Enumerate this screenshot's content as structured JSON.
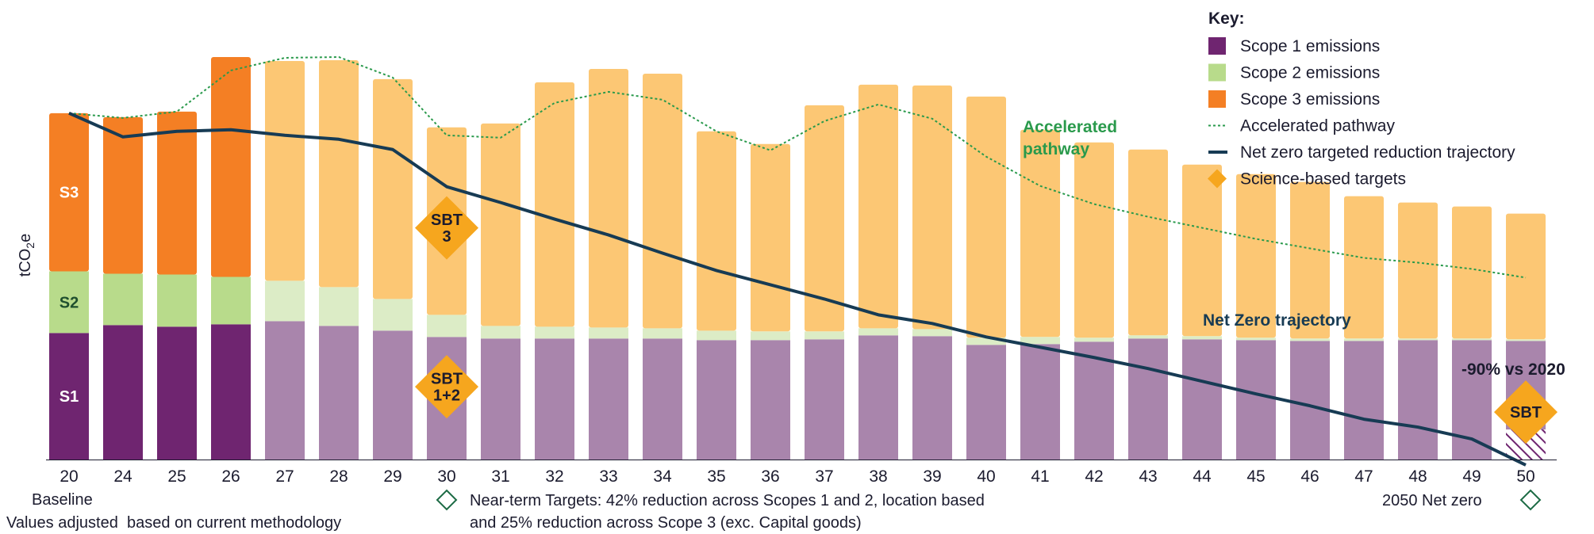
{
  "chart_data": {
    "type": "bar",
    "stacked": true,
    "ylabel": "tCO2e",
    "categories": [
      "20",
      "24",
      "25",
      "26",
      "27",
      "28",
      "29",
      "30",
      "31",
      "32",
      "33",
      "34",
      "35",
      "36",
      "37",
      "38",
      "39",
      "40",
      "41",
      "42",
      "43",
      "44",
      "45",
      "46",
      "47",
      "48",
      "49",
      "50"
    ],
    "baseline_label": "Baseline",
    "series": [
      {
        "name": "Scope 1 emissions",
        "short": "S1",
        "color": "#6f2570",
        "faded_color": "#a985ac",
        "values": [
          160,
          170,
          168,
          171,
          175,
          169,
          163,
          155,
          153,
          153,
          153,
          153,
          151,
          151,
          152,
          157,
          156,
          145,
          146,
          149,
          153,
          152,
          151,
          150,
          150,
          151,
          151,
          150
        ]
      },
      {
        "name": "Scope 2 emissions",
        "short": "S2",
        "color": "#b8db8b",
        "faded_color": "#dcecc6",
        "values": [
          78,
          65,
          66,
          60,
          51,
          49,
          40,
          28,
          16,
          15,
          14,
          13,
          12,
          11,
          10,
          9,
          9,
          9,
          9,
          5,
          4,
          4,
          3,
          3,
          3,
          2,
          2,
          2
        ]
      },
      {
        "name": "Scope 3 emissions",
        "short": "S3",
        "color": "#f47f24",
        "faded_color": "#fcc774",
        "values": [
          200,
          198,
          206,
          278,
          278,
          287,
          278,
          237,
          256,
          309,
          327,
          322,
          252,
          237,
          286,
          308,
          308,
          305,
          262,
          247,
          235,
          217,
          207,
          198,
          180,
          172,
          167,
          159
        ]
      }
    ],
    "faded_from_index": 4,
    "lines": [
      {
        "name": "Accelerated pathway",
        "style": "dotted",
        "color": "#2a9a4c",
        "values": [
          438,
          432,
          440,
          492,
          508,
          509,
          483,
          410,
          407,
          451,
          465,
          455,
          415,
          391,
          428,
          449,
          431,
          383,
          346,
          323,
          307,
          293,
          279,
          267,
          255,
          249,
          241,
          230
        ]
      },
      {
        "name": "Net zero targeted reduction trajectory",
        "style": "solid",
        "color": "#173b54",
        "values": [
          438,
          408,
          415,
          417,
          410,
          405,
          392,
          345,
          325,
          304,
          284,
          261,
          239,
          221,
          203,
          183,
          172,
          155,
          142,
          129,
          115,
          99,
          83,
          68,
          51,
          41,
          26,
          -7
        ]
      }
    ],
    "markers": [
      {
        "name": "Science-based targets",
        "shape": "diamond",
        "color": "#f6a61e",
        "points": [
          {
            "category": "30",
            "label_lines": [
              "SBT",
              "3"
            ],
            "y": 293
          },
          {
            "category": "30",
            "label_lines": [
              "SBT",
              "1+2"
            ],
            "y": 92
          },
          {
            "category": "50",
            "label_lines": [
              "SBT"
            ],
            "y": 60
          }
        ]
      }
    ],
    "annotations": {
      "accelerated": [
        "Accelerated",
        "pathway"
      ],
      "net_zero": "Net Zero trajectory",
      "pct_vs_2020": "-90% vs 2020"
    },
    "legend_position": "top-right",
    "grid": false,
    "ylim": [
      0,
      520
    ]
  },
  "key": {
    "title": "Key:",
    "items": [
      {
        "label": "Scope 1 emissions",
        "shape": "square",
        "color": "#6f2570"
      },
      {
        "label": "Scope 2 emissions",
        "shape": "square",
        "color": "#b8db8b"
      },
      {
        "label": "Scope 3 emissions",
        "shape": "square",
        "color": "#f47f24"
      },
      {
        "label": "Accelerated pathway",
        "shape": "dotted-line",
        "color": "#2a9a4c"
      },
      {
        "label": "Net zero targeted reduction trajectory",
        "shape": "solid-line",
        "color": "#173b54"
      },
      {
        "label": "Science-based targets",
        "shape": "diamond",
        "color": "#f6a61e"
      }
    ]
  },
  "footer": {
    "methodology_note": "Values adjusted  based on current methodology",
    "near_term_line1": "Near-term Targets: 42% reduction across Scopes 1 and 2, location based",
    "near_term_line2": "and 25% reduction across Scope 3 (exc. Capital goods)",
    "net_zero_label": "2050 Net zero"
  }
}
